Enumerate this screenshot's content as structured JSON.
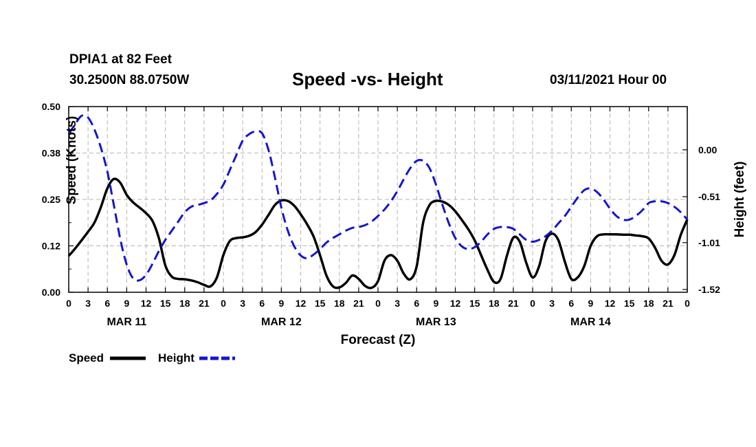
{
  "header": {
    "station": "DPIA1 at 82 Feet",
    "coords": "30.2500N 88.0750W",
    "title": "Speed -vs- Height",
    "datetime": "03/11/2021 Hour 00"
  },
  "legend": {
    "speed_label": "Speed",
    "height_label": "Height"
  },
  "colors": {
    "speed": "#000000",
    "height": "#1515d0",
    "grid": "#b4b4b4"
  },
  "chart_data": {
    "type": "line",
    "title": "Speed -vs- Height",
    "xlabel": "Forecast (Z)",
    "ylabel": "Speed (Knots)",
    "y2label": "Height (feet)",
    "xlim": [
      0,
      96
    ],
    "ylim": [
      0,
      0.5
    ],
    "y2lim": [
      -1.55,
      0.47
    ],
    "y_ticks": [
      0.0,
      0.125,
      0.25,
      0.375,
      0.5
    ],
    "y_tick_labels": [
      "0.00",
      "0.12",
      "0.25",
      "0.38",
      "0.50"
    ],
    "y2_ticks": [
      0.0,
      -0.51,
      -1.01,
      -1.52
    ],
    "y2_tick_labels": [
      "0.00",
      "-0.51",
      "-1.01",
      "-1.52"
    ],
    "x_ticks": [
      0,
      3,
      6,
      9,
      12,
      15,
      18,
      21,
      24,
      27,
      30,
      33,
      36,
      39,
      42,
      45,
      48,
      51,
      54,
      57,
      60,
      63,
      66,
      69,
      72,
      75,
      78,
      81,
      84,
      87,
      90,
      93,
      96
    ],
    "x_tick_labels": [
      "0",
      "3",
      "6",
      "9",
      "12",
      "15",
      "18",
      "21",
      "0",
      "3",
      "6",
      "9",
      "12",
      "15",
      "18",
      "21",
      "0",
      "3",
      "6",
      "9",
      "12",
      "15",
      "18",
      "21",
      "0",
      "3",
      "6",
      "9",
      "12",
      "15",
      "18",
      "21",
      "0"
    ],
    "day_labels": [
      {
        "label": "MAR 11",
        "x": 9
      },
      {
        "label": "MAR 12",
        "x": 33
      },
      {
        "label": "MAR 13",
        "x": 57
      },
      {
        "label": "MAR 14",
        "x": 81
      }
    ],
    "grid": true,
    "series": [
      {
        "name": "Speed",
        "axis": "left",
        "x": [
          0,
          1,
          2,
          3,
          4,
          5,
          6,
          7,
          8,
          9,
          10,
          11,
          12,
          13,
          14,
          15,
          16,
          17,
          18,
          19,
          20,
          21,
          22,
          23,
          24,
          25,
          26,
          27,
          28,
          29,
          30,
          31,
          32,
          33,
          34,
          35,
          36,
          37,
          38,
          39,
          40,
          41,
          42,
          43,
          44,
          45,
          46,
          47,
          48,
          49,
          50,
          51,
          52,
          53,
          54,
          55,
          56,
          57,
          58,
          59,
          60,
          61,
          62,
          63,
          64,
          65,
          66,
          67,
          68,
          69,
          70,
          71,
          72,
          73,
          74,
          75,
          76,
          77,
          78,
          79,
          80,
          81,
          82,
          83,
          84,
          85,
          86,
          87,
          88,
          89,
          90,
          91,
          92,
          93,
          94,
          95,
          96
        ],
        "values": [
          0.098,
          0.118,
          0.14,
          0.163,
          0.188,
          0.23,
          0.28,
          0.305,
          0.295,
          0.262,
          0.242,
          0.228,
          0.213,
          0.192,
          0.145,
          0.072,
          0.042,
          0.036,
          0.035,
          0.032,
          0.027,
          0.02,
          0.016,
          0.04,
          0.1,
          0.138,
          0.146,
          0.148,
          0.152,
          0.162,
          0.182,
          0.208,
          0.235,
          0.247,
          0.246,
          0.233,
          0.21,
          0.183,
          0.15,
          0.1,
          0.045,
          0.016,
          0.013,
          0.025,
          0.045,
          0.036,
          0.017,
          0.012,
          0.03,
          0.085,
          0.1,
          0.085,
          0.05,
          0.035,
          0.07,
          0.187,
          0.235,
          0.246,
          0.244,
          0.235,
          0.218,
          0.195,
          0.17,
          0.14,
          0.1,
          0.06,
          0.028,
          0.035,
          0.098,
          0.147,
          0.136,
          0.08,
          0.04,
          0.07,
          0.138,
          0.158,
          0.14,
          0.082,
          0.036,
          0.04,
          0.07,
          0.125,
          0.151,
          0.156,
          0.156,
          0.156,
          0.155,
          0.155,
          0.153,
          0.151,
          0.145,
          0.12,
          0.085,
          0.075,
          0.1,
          0.155,
          0.196
        ]
      },
      {
        "name": "Height",
        "axis": "right",
        "x": [
          0,
          1,
          2,
          3,
          4,
          5,
          6,
          7,
          8,
          9,
          10,
          11,
          12,
          13,
          14,
          15,
          16,
          17,
          18,
          19,
          20,
          21,
          22,
          23,
          24,
          25,
          26,
          27,
          28,
          29,
          30,
          31,
          32,
          33,
          34,
          35,
          36,
          37,
          38,
          39,
          40,
          41,
          42,
          43,
          44,
          45,
          46,
          47,
          48,
          49,
          50,
          51,
          52,
          53,
          54,
          55,
          56,
          57,
          58,
          59,
          60,
          61,
          62,
          63,
          64,
          65,
          66,
          67,
          68,
          69,
          70,
          71,
          72,
          73,
          74,
          75,
          76,
          77,
          78,
          79,
          80,
          81,
          82,
          83,
          84,
          85,
          86,
          87,
          88,
          89,
          90,
          91,
          92,
          93,
          94,
          95,
          96
        ],
        "values": [
          0.17,
          0.28,
          0.37,
          0.35,
          0.22,
          0.02,
          -0.24,
          -0.6,
          -0.97,
          -1.25,
          -1.4,
          -1.42,
          -1.36,
          -1.24,
          -1.1,
          -0.98,
          -0.88,
          -0.78,
          -0.68,
          -0.62,
          -0.6,
          -0.58,
          -0.55,
          -0.48,
          -0.38,
          -0.22,
          -0.06,
          0.1,
          0.17,
          0.2,
          0.18,
          0.0,
          -0.3,
          -0.63,
          -0.88,
          -1.05,
          -1.15,
          -1.18,
          -1.14,
          -1.08,
          -1.01,
          -0.96,
          -0.92,
          -0.88,
          -0.85,
          -0.84,
          -0.82,
          -0.78,
          -0.72,
          -0.65,
          -0.56,
          -0.45,
          -0.32,
          -0.2,
          -0.12,
          -0.12,
          -0.2,
          -0.38,
          -0.6,
          -0.8,
          -0.96,
          -1.05,
          -1.08,
          -1.06,
          -1.0,
          -0.92,
          -0.86,
          -0.84,
          -0.84,
          -0.86,
          -0.92,
          -0.98,
          -1.0,
          -0.98,
          -0.94,
          -0.88,
          -0.8,
          -0.72,
          -0.62,
          -0.52,
          -0.44,
          -0.42,
          -0.46,
          -0.54,
          -0.64,
          -0.72,
          -0.76,
          -0.76,
          -0.72,
          -0.66,
          -0.58,
          -0.56,
          -0.56,
          -0.58,
          -0.62,
          -0.68,
          -0.76
        ]
      }
    ]
  }
}
